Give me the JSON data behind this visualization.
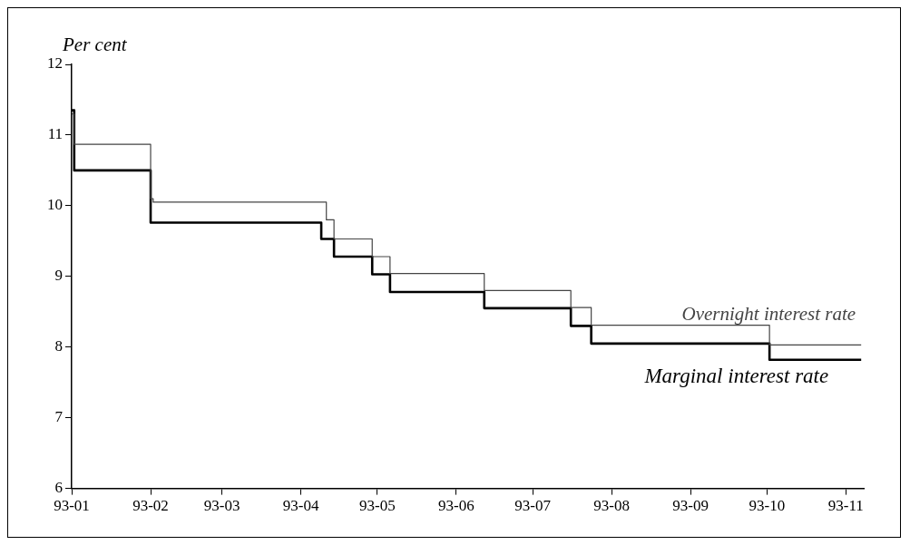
{
  "chart_data": {
    "type": "step",
    "ylabel": "Per cent",
    "xlim": [
      "--01-01",
      "--11-08"
    ],
    "ylim": [
      6,
      12
    ],
    "yticks": [
      6,
      7,
      8,
      9,
      10,
      11,
      12
    ],
    "xticks": [
      {
        "value": "--01-01",
        "label": "93-01"
      },
      {
        "value": "--02-01",
        "label": "93-02"
      },
      {
        "value": "--03-01",
        "label": "93-03"
      },
      {
        "value": "--04-01",
        "label": "93-04"
      },
      {
        "value": "--05-01",
        "label": "93-05"
      },
      {
        "value": "--06-01",
        "label": "93-06"
      },
      {
        "value": "--07-01",
        "label": "93-07"
      },
      {
        "value": "--08-01",
        "label": "93-08"
      },
      {
        "value": "--09-01",
        "label": "93-09"
      },
      {
        "value": "--10-01",
        "label": "93-10"
      },
      {
        "value": "--11-01",
        "label": "93-11"
      }
    ],
    "grid": false,
    "legend": false,
    "marker": "none",
    "series": [
      {
        "name": "Overnight interest rate",
        "color": "#444444",
        "x": [
          "--01-01",
          "--01-02",
          "--02-01",
          "--02-02",
          "--04-11",
          "--04-14",
          "--04-29",
          "--05-06",
          "--06-12",
          "--07-16",
          "--07-24",
          "--10-02",
          "--11-07"
        ],
        "values": [
          11.3,
          10.87,
          10.1,
          10.05,
          9.8,
          9.53,
          9.28,
          9.04,
          8.8,
          8.56,
          8.31,
          8.03,
          8.03
        ]
      },
      {
        "name": "Marginal interest rate",
        "color": "#000000",
        "x": [
          "--01-01",
          "--01-02",
          "--02-01",
          "--04-09",
          "--04-14",
          "--04-29",
          "--05-06",
          "--06-12",
          "--07-16",
          "--07-24",
          "--10-02",
          "--11-07"
        ],
        "values": [
          11.35,
          10.5,
          9.76,
          9.53,
          9.28,
          9.03,
          8.78,
          8.55,
          8.3,
          8.05,
          7.82,
          7.82
        ]
      }
    ]
  }
}
